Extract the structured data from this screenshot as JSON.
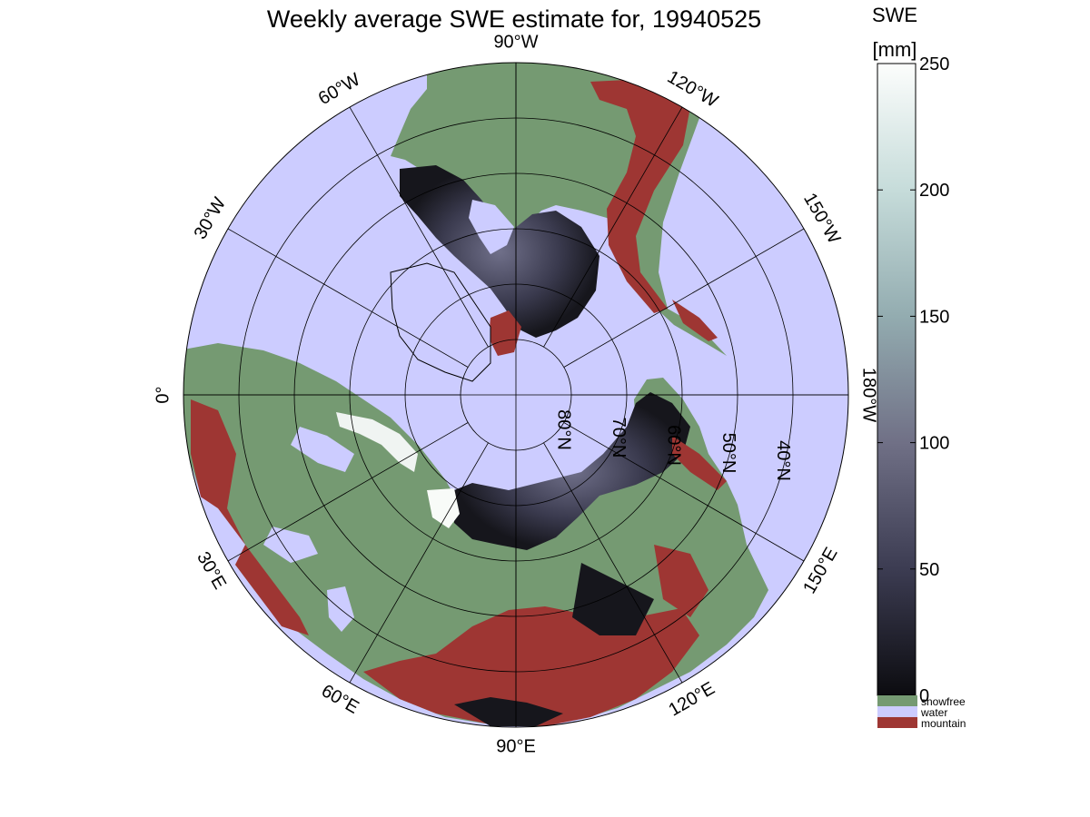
{
  "title": "Weekly average SWE estimate for, 19940525",
  "colorbar": {
    "label": "SWE",
    "unit": "[mm]",
    "ticks": [
      {
        "value": 0,
        "label": "0"
      },
      {
        "value": 50,
        "label": "50"
      },
      {
        "value": 100,
        "label": "100"
      },
      {
        "value": 150,
        "label": "150"
      },
      {
        "value": 200,
        "label": "200"
      },
      {
        "value": 250,
        "label": "250"
      }
    ],
    "range": [
      0,
      250
    ],
    "gradient_colors": [
      "#0c0c10",
      "#3c3c52",
      "#707086",
      "#93acb0",
      "#c6dcda",
      "#fcfdfc"
    ]
  },
  "categories": [
    {
      "label": "snowfree",
      "color": "#759a72"
    },
    {
      "label": "water",
      "color": "#ccccff"
    },
    {
      "label": "mountain",
      "color": "#9e3633"
    }
  ],
  "map": {
    "projection": "north-polar-azimuthal",
    "ocean_color": "#ccccff",
    "latitude_circles": [
      80,
      70,
      60,
      50,
      40
    ],
    "longitude_labels": [
      {
        "lon": 90,
        "text": "90°W"
      },
      {
        "lon": 120,
        "text": "120°W"
      },
      {
        "lon": 150,
        "text": "150°W"
      },
      {
        "lon": 180,
        "text": "180°W"
      },
      {
        "lon": 210,
        "text": "150°E"
      },
      {
        "lon": 240,
        "text": "120°E"
      },
      {
        "lon": 270,
        "text": "90°E"
      },
      {
        "lon": 300,
        "text": "60°E"
      },
      {
        "lon": 330,
        "text": "30°E"
      },
      {
        "lon": 0,
        "text": "0°"
      },
      {
        "lon": 30,
        "text": "30°W"
      },
      {
        "lon": 60,
        "text": "60°W"
      }
    ],
    "latitude_labels": [
      {
        "lat": 80,
        "text": "80°N"
      },
      {
        "lat": 70,
        "text": "70°N"
      },
      {
        "lat": 60,
        "text": "60°N"
      },
      {
        "lat": 50,
        "text": "50°N"
      },
      {
        "lat": 40,
        "text": "40°N"
      }
    ]
  }
}
